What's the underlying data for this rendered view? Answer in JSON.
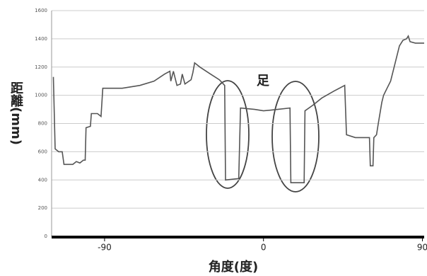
{
  "chart_data": {
    "type": "line",
    "x_label": "角度(度)",
    "y_label": "距離(mm)",
    "annotation": "足",
    "color": "#555555",
    "grid": true,
    "xlim": [
      -120,
      91
    ],
    "ylim": [
      0,
      1600
    ],
    "xticks": [
      -90,
      0,
      90
    ],
    "yticks": [
      0,
      200,
      400,
      600,
      800,
      1000,
      1200,
      1400,
      1600
    ],
    "x": [
      -119,
      -118,
      -116,
      -114,
      -113,
      -108,
      -106,
      -104,
      -102,
      -101,
      -100.5,
      -98,
      -97.5,
      -94,
      -92,
      -91,
      -80,
      -70,
      -62,
      -56,
      -53,
      -52.5,
      -51,
      -49,
      -47,
      -46,
      -44.5,
      -41,
      -40,
      -39,
      -36,
      -30,
      -25,
      -22,
      -21.5,
      -14,
      -13,
      -5,
      0,
      8,
      15,
      15.5,
      23,
      23.5,
      28,
      33,
      40,
      46,
      47,
      52,
      60,
      60.5,
      62,
      62.5,
      64,
      65,
      67,
      68,
      70,
      72,
      74,
      75,
      77,
      79,
      81,
      82,
      83,
      86,
      91
    ],
    "values": [
      1130,
      620,
      600,
      600,
      510,
      510,
      530,
      520,
      540,
      540,
      770,
      780,
      870,
      870,
      850,
      1050,
      1050,
      1070,
      1100,
      1150,
      1170,
      1100,
      1170,
      1070,
      1080,
      1150,
      1080,
      1110,
      1160,
      1230,
      1200,
      1150,
      1110,
      1070,
      400,
      410,
      910,
      900,
      890,
      900,
      910,
      380,
      380,
      890,
      930,
      980,
      1030,
      1070,
      720,
      700,
      700,
      500,
      500,
      700,
      720,
      800,
      950,
      1000,
      1050,
      1100,
      1200,
      1250,
      1350,
      1390,
      1400,
      1420,
      1380,
      1370,
      1370
    ]
  }
}
